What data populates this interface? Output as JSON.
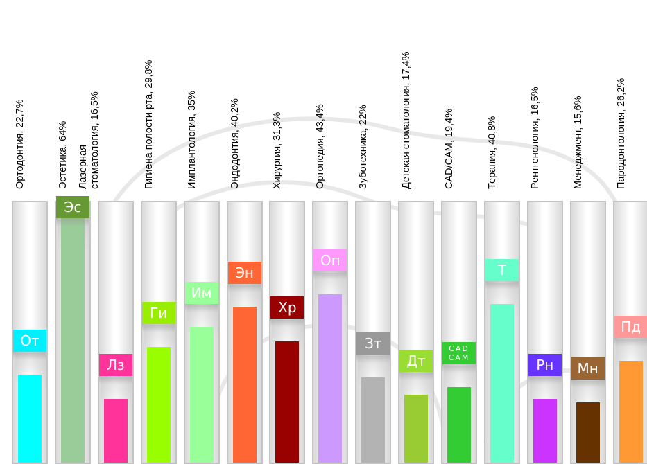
{
  "chart_data": {
    "type": "bar",
    "title": "",
    "xlabel": "",
    "ylabel": "",
    "ylim": [
      0,
      66
    ],
    "grid": false,
    "legend": "none",
    "categories": [
      {
        "label": "Ортодонтия, 22,7%",
        "lines": [
          "Ортодонтия, 22,7%"
        ],
        "abbr": "От",
        "abbr_lines": [
          "От"
        ],
        "value": 22.7,
        "color": "#00ffff",
        "badge_color": "#00f0ff"
      },
      {
        "label": "Эстетика, 64%",
        "lines": [
          "Эстетика, 64%"
        ],
        "abbr": "Эс",
        "abbr_lines": [
          "Эс"
        ],
        "value": 64.0,
        "color": "#99cc99",
        "badge_color": "#669933"
      },
      {
        "label": "Лазерная стоматология, 16,5%",
        "lines": [
          "Лазерная",
          "стоматология, 16,5%"
        ],
        "abbr": "Лз",
        "abbr_lines": [
          "Лз"
        ],
        "value": 16.5,
        "color": "#ff3399",
        "badge_color": "#ff3399"
      },
      {
        "label": "Гигиена полости рта, 29,8%",
        "lines": [
          "Гигиена полости рта, 29,8%"
        ],
        "abbr": "Ги",
        "abbr_lines": [
          "Ги"
        ],
        "value": 29.8,
        "color": "#99ff00",
        "badge_color": "#99ee00"
      },
      {
        "label": "Имплантология, 35%",
        "lines": [
          "Имплантология, 35%"
        ],
        "abbr": "Им",
        "abbr_lines": [
          "Им"
        ],
        "value": 35.0,
        "color": "#99ff99",
        "badge_color": "#99ff99"
      },
      {
        "label": "Эндодонтия, 40,2%",
        "lines": [
          "Эндодонтия, 40,2%"
        ],
        "abbr": "Эн",
        "abbr_lines": [
          "Эн"
        ],
        "value": 40.2,
        "color": "#ff6633",
        "badge_color": "#ff6633"
      },
      {
        "label": "Хирургия, 31,3%",
        "lines": [
          "Хирургия, 31,3%"
        ],
        "abbr": "Хр",
        "abbr_lines": [
          "Хр"
        ],
        "value": 31.3,
        "color": "#990000",
        "badge_color": "#990000"
      },
      {
        "label": "Ортопедия, 43,4%",
        "lines": [
          "Ортопедия, 43,4%"
        ],
        "abbr": "Оп",
        "abbr_lines": [
          "Оп"
        ],
        "value": 43.4,
        "color": "#cc99ff",
        "badge_color": "#ff99ff"
      },
      {
        "label": "Зуботехника, 22%",
        "lines": [
          "Зуботехника, 22%"
        ],
        "abbr": "Зт",
        "abbr_lines": [
          "Зт"
        ],
        "value": 22.0,
        "color": "#b3b3b3",
        "badge_color": "#999999"
      },
      {
        "label": "Детская стоматология, 17,4%",
        "lines": [
          "Детская стоматология, 17,4%"
        ],
        "abbr": "Дт",
        "abbr_lines": [
          "Дт"
        ],
        "value": 17.4,
        "color": "#99cc33",
        "badge_color": "#99dd33"
      },
      {
        "label": "CAD/CAM, 19,4%",
        "lines": [
          "CAD/CAM, 19,4%"
        ],
        "abbr": "CAD CAM",
        "abbr_lines": [
          "CAD",
          "CAM"
        ],
        "value": 19.4,
        "color": "#33cc33",
        "badge_color": "#33cc33"
      },
      {
        "label": "Терапия, 40,8%",
        "lines": [
          "Терапия, 40,8%"
        ],
        "abbr": "Т",
        "abbr_lines": [
          "Т"
        ],
        "value": 40.8,
        "color": "#66ffcc",
        "badge_color": "#66ffcc"
      },
      {
        "label": "Рентгенология, 16,5%",
        "lines": [
          "Рентгенология, 16,5%"
        ],
        "abbr": "Рн",
        "abbr_lines": [
          "Рн"
        ],
        "value": 16.5,
        "color": "#cc33ff",
        "badge_color": "#6633ff"
      },
      {
        "label": "Менеджмент, 15,6%",
        "lines": [
          "Менеджмент, 15,6%"
        ],
        "abbr": "Мн",
        "abbr_lines": [
          "Мн"
        ],
        "value": 15.6,
        "color": "#663300",
        "badge_color": "#996633"
      },
      {
        "label": "Пародонтология, 26,2%",
        "lines": [
          "Пародонтология, 26,2%"
        ],
        "abbr": "Пд",
        "abbr_lines": [
          "Пд"
        ],
        "value": 26.2,
        "color": "#ff9933",
        "badge_color": "#ff9999"
      }
    ]
  }
}
